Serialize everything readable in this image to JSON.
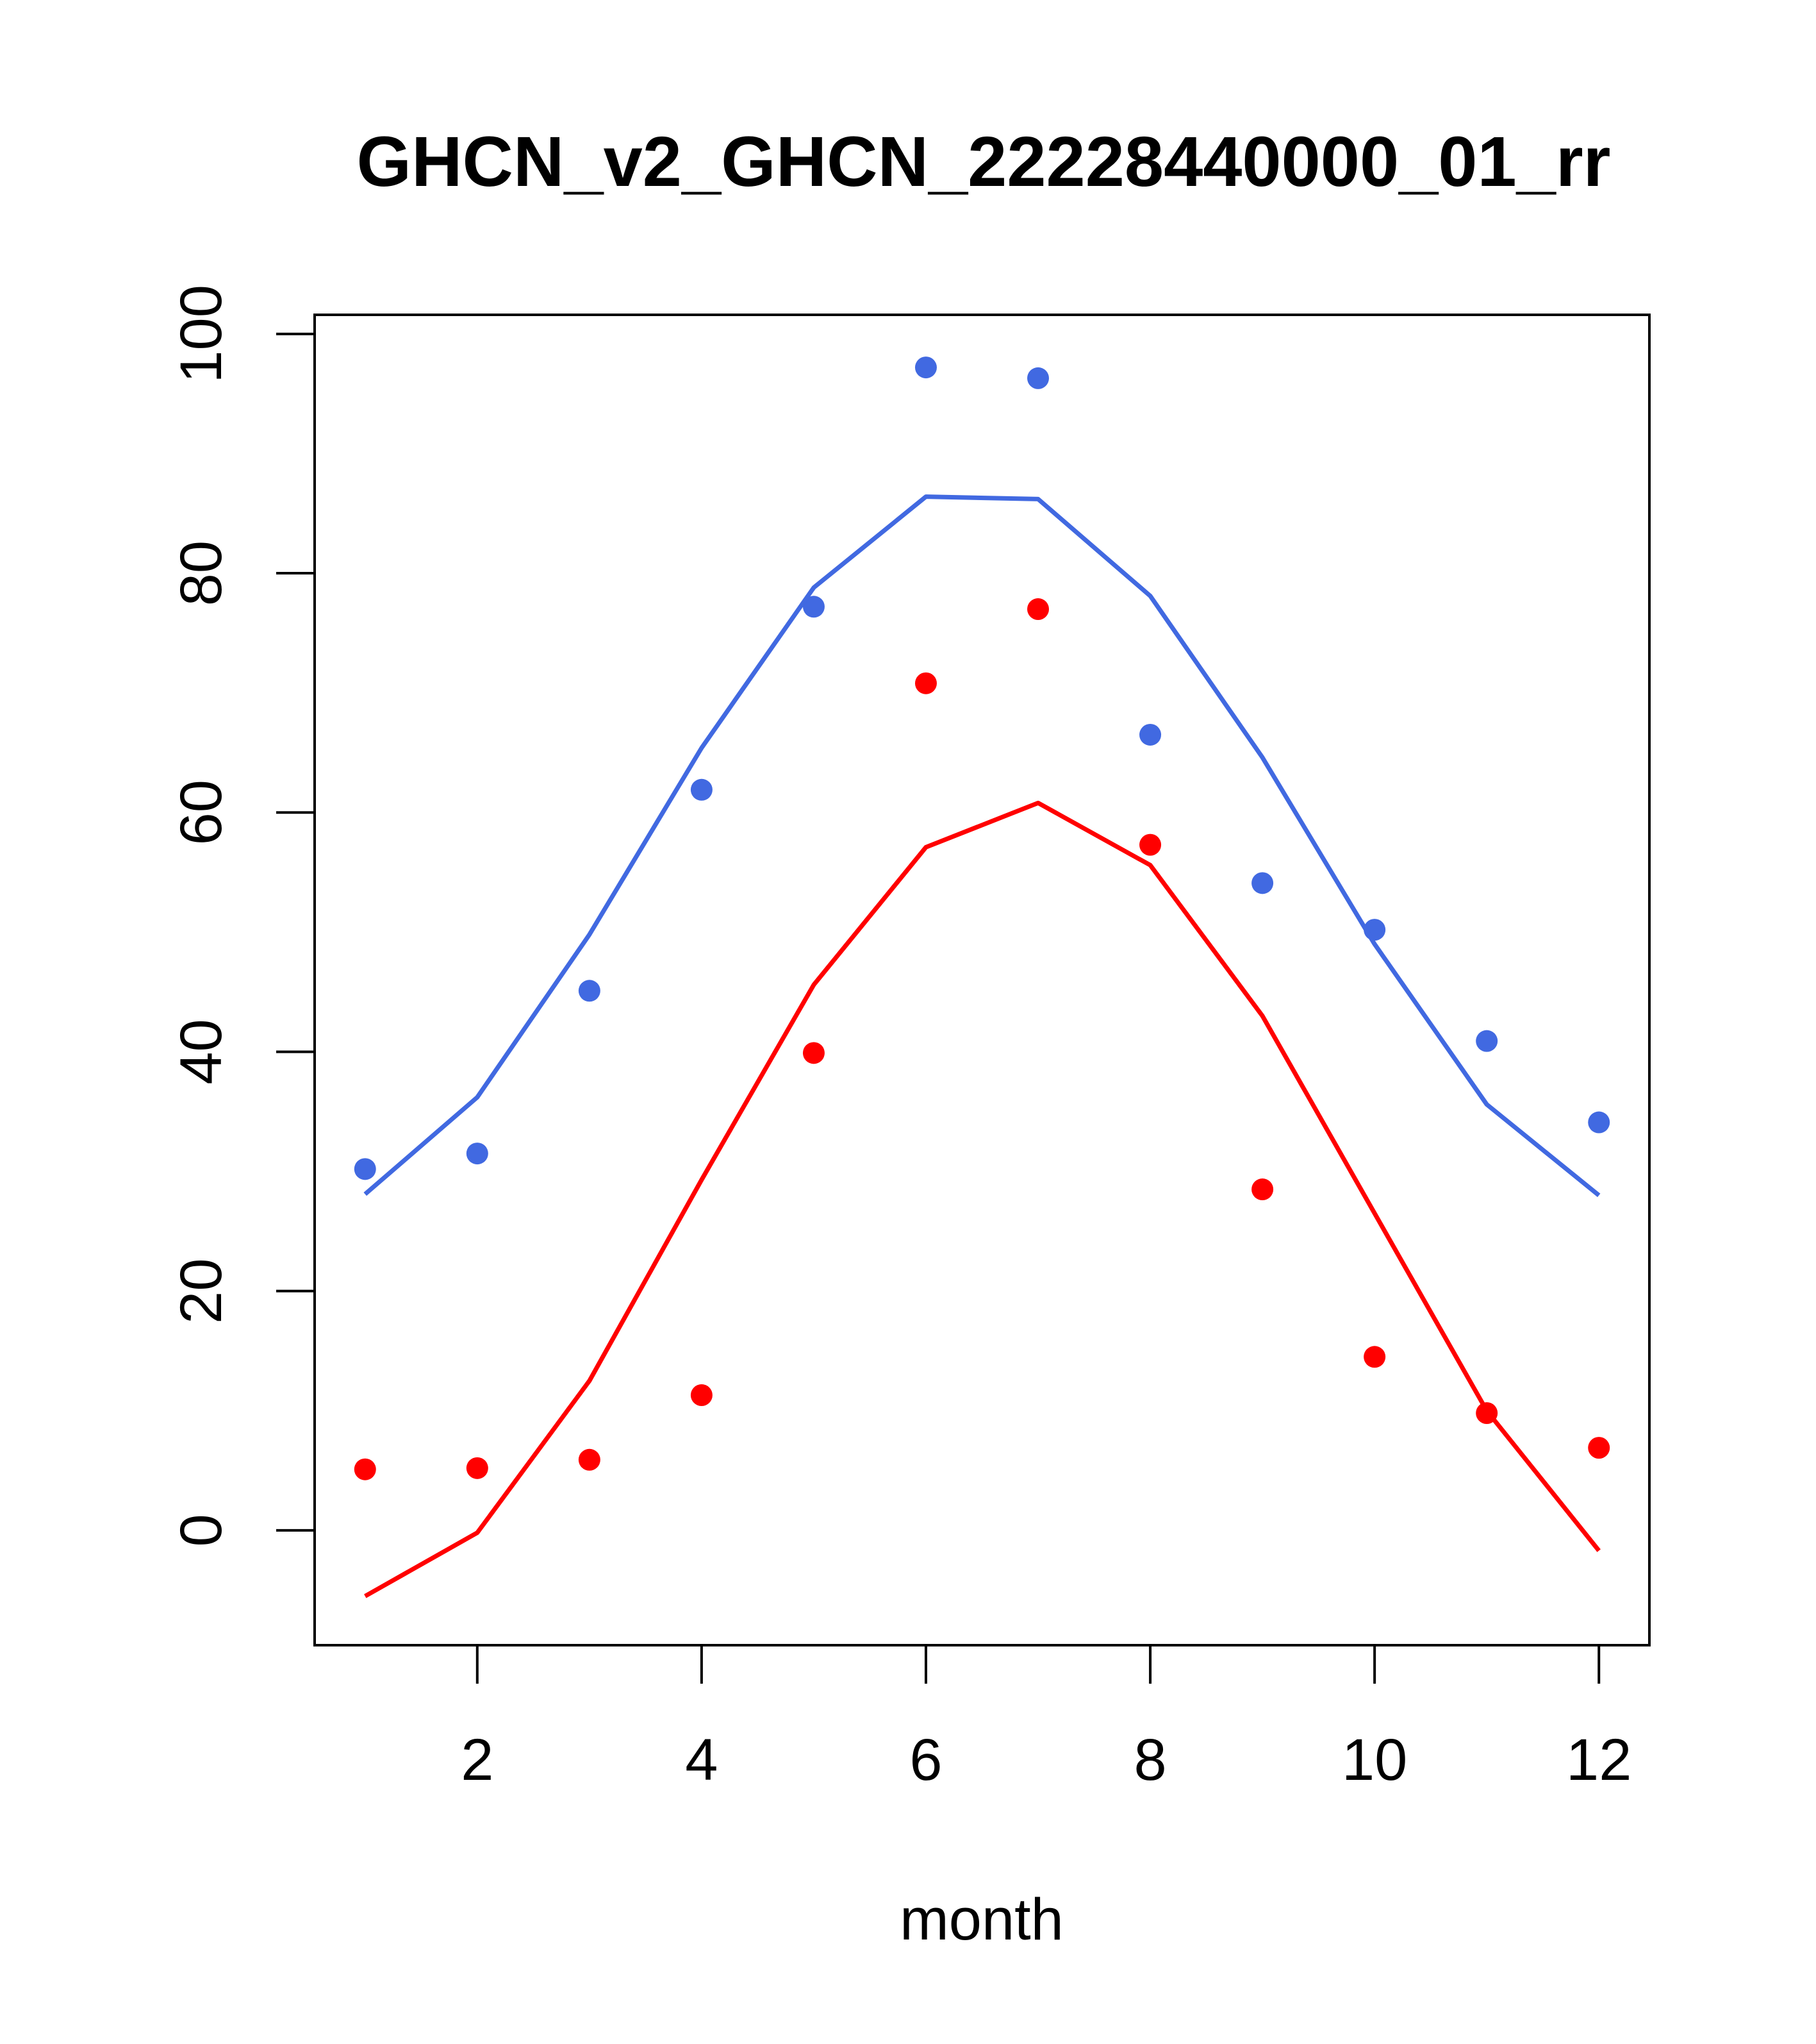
{
  "chart_data": {
    "type": "scatter",
    "title": "GHCN_v2_GHCN_22228440000_01_rr",
    "xlabel": "month",
    "ylabel": "",
    "xlim": [
      0.55,
      12.45
    ],
    "ylim": [
      -9.6,
      101.6
    ],
    "x_ticks": [
      2,
      4,
      6,
      8,
      10,
      12
    ],
    "y_ticks": [
      0,
      20,
      40,
      60,
      80,
      100
    ],
    "x": [
      1,
      2,
      3,
      4,
      5,
      6,
      7,
      8,
      9,
      10,
      11,
      12
    ],
    "series": [
      {
        "name": "blue points",
        "kind": "points",
        "color": "#4169E1",
        "values": [
          30.2,
          31.5,
          45.1,
          61.9,
          77.2,
          97.2,
          96.3,
          66.5,
          54.1,
          50.2,
          40.9,
          34.1
        ]
      },
      {
        "name": "blue line",
        "kind": "line",
        "color": "#4169E1",
        "values": [
          28.1,
          36.2,
          49.8,
          65.4,
          78.8,
          86.4,
          86.2,
          78.1,
          64.6,
          49.0,
          35.6,
          28.0
        ]
      },
      {
        "name": "red points",
        "kind": "points",
        "color": "#FF0000",
        "values": [
          5.1,
          5.2,
          5.9,
          11.3,
          39.9,
          70.8,
          77.0,
          57.3,
          28.5,
          14.5,
          9.8,
          6.9
        ]
      },
      {
        "name": "red line",
        "kind": "line",
        "color": "#FF0000",
        "values": [
          -5.5,
          -0.2,
          12.5,
          29.3,
          45.6,
          57.1,
          60.8,
          55.6,
          43.0,
          26.5,
          10.0,
          -1.7
        ]
      }
    ]
  }
}
